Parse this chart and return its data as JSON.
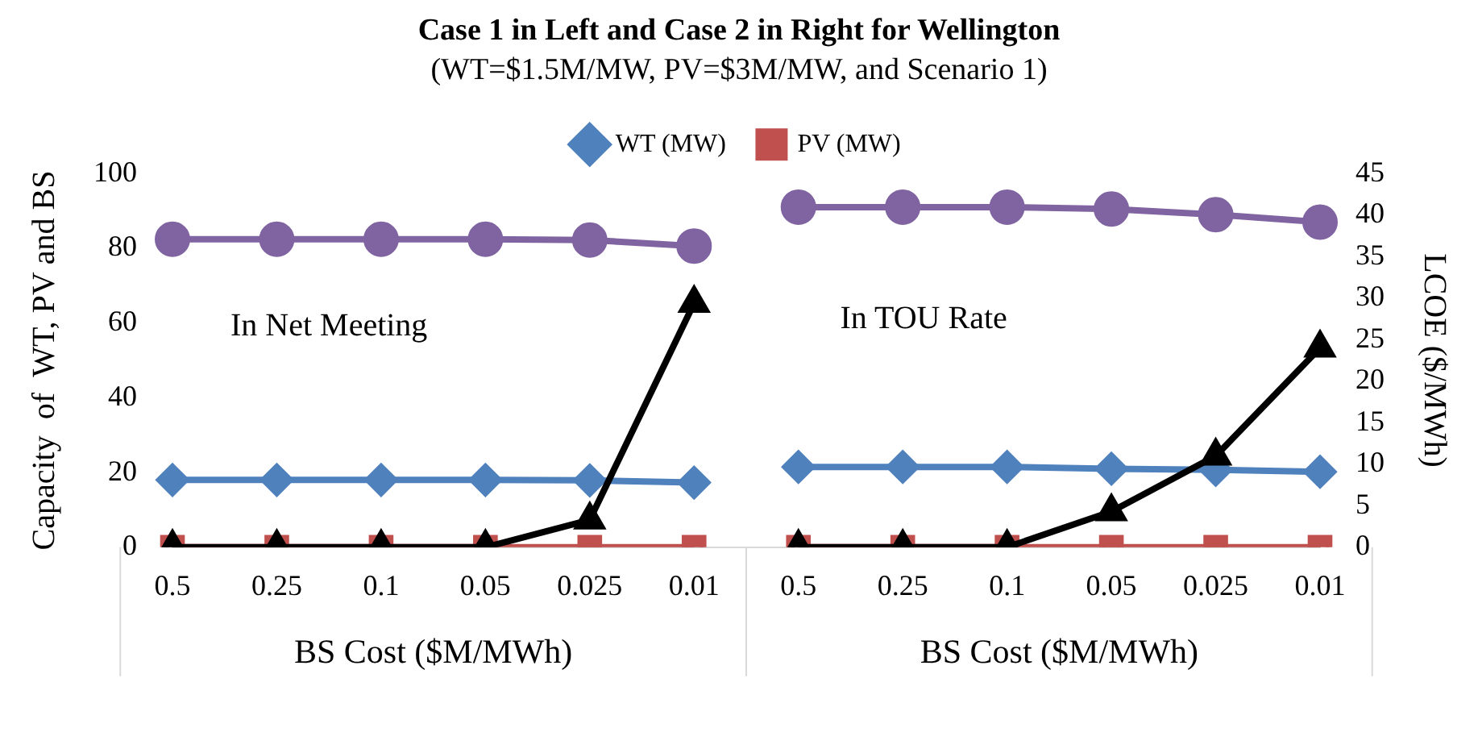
{
  "chart_data": {
    "type": "line",
    "title": "Case 1 in Left and Case 2 in Right for Wellington",
    "subtitle": "(WT=$1.5M/MW, PV=$3M/MW, and Scenario 1)",
    "ylabel": "Capacity  of  WT, PV and BS",
    "y2label": "LCOE ($/MWh)",
    "categories": [
      "0.5",
      "0.25",
      "0.1",
      "0.05",
      "0.025",
      "0.01",
      "0.5",
      "0.25",
      "0.1",
      "0.05",
      "0.025",
      "0.01"
    ],
    "series": [
      {
        "name": "WT (MW)",
        "color": "#4f81bd",
        "marker": "diamond",
        "values": [
          18,
          18,
          18,
          18,
          17.9,
          17.3,
          21.5,
          21.5,
          21.5,
          21,
          20.7,
          20.2
        ]
      },
      {
        "name": "PV (MW)",
        "color": "#c0504d",
        "marker": "square",
        "values": [
          0,
          0,
          0,
          0,
          0,
          0,
          0,
          0,
          0,
          0,
          0,
          0
        ]
      },
      {
        "color": "#8064a2",
        "marker": "circle",
        "values": [
          82.4,
          82.4,
          82.4,
          82.4,
          82.2,
          80.6,
          91,
          91,
          91,
          90.5,
          89,
          87
        ]
      },
      {
        "color": "#000000",
        "marker": "triangle",
        "axis": "y2",
        "values": [
          0,
          0,
          0,
          0,
          3.3,
          29.4,
          0,
          0,
          0,
          4.3,
          11,
          24
        ]
      }
    ],
    "ylim": [
      0,
      100
    ],
    "yticks": [
      0,
      20,
      40,
      60,
      80,
      100
    ],
    "y2lim": [
      0,
      45
    ],
    "y2ticks": [
      0,
      5,
      10,
      15,
      20,
      25,
      30,
      35,
      40,
      45
    ],
    "legend": "top",
    "line_style": "solid",
    "annotations": [
      "In Net Meeting",
      "In TOU Rate",
      "BS Cost ($M/MWh)",
      "BS Cost ($M/MWh)"
    ]
  }
}
